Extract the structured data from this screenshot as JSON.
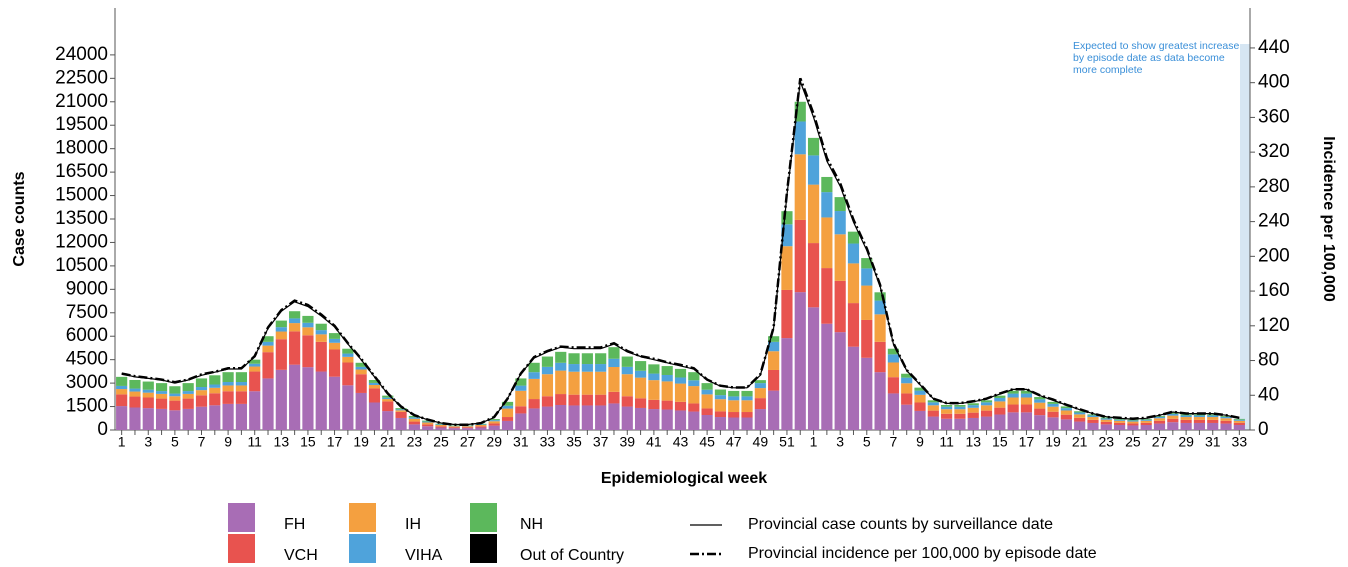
{
  "chart_data": {
    "type": "bar",
    "stacked": true,
    "x_label": "Epidemiological week",
    "y_label": "Case counts",
    "y2_label": "Incidence per 100,000",
    "annotation": "Expected to show greatest increase by episode date as data become more complete",
    "categories": [
      "1",
      null,
      "3",
      null,
      "5",
      null,
      "7",
      null,
      "9",
      null,
      "11",
      null,
      "13",
      null,
      "15",
      null,
      "17",
      null,
      "19",
      null,
      "21",
      null,
      "23",
      null,
      "25",
      null,
      "27",
      null,
      "29",
      null,
      "31",
      null,
      "33",
      null,
      "35",
      null,
      "37",
      null,
      "39",
      null,
      "41",
      null,
      "43",
      null,
      "45",
      null,
      "47",
      null,
      "49",
      null,
      "51",
      null,
      "1",
      null,
      "3",
      null,
      "5",
      null,
      "7",
      null,
      "9",
      null,
      "11",
      null,
      "13",
      null,
      "15",
      null,
      "17",
      null,
      "19",
      null,
      "21",
      null,
      "23",
      null,
      "25",
      null,
      "27",
      null,
      "29",
      null,
      "31",
      null,
      "33"
    ],
    "ylim": [
      0,
      27000
    ],
    "yticks": [
      0,
      1500,
      3000,
      4500,
      6000,
      7500,
      9000,
      10500,
      12000,
      13500,
      15000,
      16500,
      18000,
      19500,
      21000,
      22500,
      24000
    ],
    "y2lim": [
      0,
      486
    ],
    "y2ticks": [
      0,
      40,
      80,
      120,
      160,
      200,
      240,
      280,
      320,
      360,
      400,
      440
    ],
    "grid": false,
    "series": [
      {
        "name": "FH",
        "color": "#a86db5",
        "values": [
          1530,
          1440,
          1400,
          1350,
          1260,
          1350,
          1490,
          1580,
          1670,
          1670,
          2480,
          3300,
          3850,
          4180,
          4020,
          3740,
          3410,
          2860,
          2370,
          1760,
          1210,
          770,
          360,
          240,
          160,
          120,
          120,
          160,
          280,
          580,
          1060,
          1380,
          1500,
          1600,
          1570,
          1570,
          1570,
          1700,
          1500,
          1410,
          1340,
          1310,
          1250,
          1180,
          960,
          830,
          800,
          800,
          1340,
          2520,
          5880,
          8820,
          7850,
          6800,
          6260,
          5330,
          4620,
          3700,
          2340,
          1620,
          1220,
          860,
          720,
          720,
          770,
          860,
          990,
          1130,
          1130,
          950,
          810,
          680,
          540,
          450,
          360,
          320,
          290,
          320,
          410,
          500,
          450,
          450,
          450,
          410,
          320
        ]
      },
      {
        "name": "VCH",
        "color": "#e8534f",
        "values": [
          750,
          700,
          680,
          660,
          620,
          660,
          730,
          770,
          810,
          810,
          1260,
          1680,
          1960,
          2130,
          2040,
          1900,
          1740,
          1460,
          1200,
          900,
          620,
          390,
          180,
          120,
          80,
          60,
          60,
          80,
          140,
          250,
          460,
          600,
          660,
          700,
          690,
          690,
          690,
          740,
          660,
          620,
          590,
          570,
          550,
          520,
          420,
          360,
          350,
          350,
          700,
          1320,
          3080,
          4620,
          4110,
          3560,
          3280,
          2790,
          2420,
          1940,
          1040,
          720,
          540,
          380,
          320,
          320,
          340,
          380,
          440,
          500,
          500,
          420,
          360,
          300,
          240,
          200,
          160,
          140,
          130,
          140,
          180,
          220,
          200,
          200,
          200,
          180,
          140
        ]
      },
      {
        "name": "IH",
        "color": "#f4a040",
        "values": [
          340,
          320,
          310,
          300,
          280,
          300,
          330,
          350,
          370,
          370,
          320,
          420,
          490,
          530,
          510,
          480,
          430,
          360,
          300,
          220,
          150,
          100,
          180,
          120,
          80,
          60,
          60,
          80,
          140,
          540,
          990,
          1290,
          1410,
          1500,
          1470,
          1470,
          1470,
          1590,
          1410,
          1320,
          1260,
          1230,
          1170,
          1110,
          900,
          780,
          750,
          750,
          640,
          1200,
          2800,
          4200,
          3740,
          3240,
          2980,
          2540,
          2200,
          1760,
          940,
          650,
          490,
          340,
          290,
          290,
          310,
          340,
          400,
          450,
          450,
          380,
          320,
          270,
          220,
          180,
          140,
          130,
          120,
          130,
          160,
          200,
          180,
          180,
          180,
          160,
          130
        ]
      },
      {
        "name": "VIHA",
        "color": "#4fa3db",
        "values": [
          200,
          190,
          190,
          180,
          170,
          180,
          200,
          210,
          220,
          220,
          180,
          240,
          280,
          300,
          290,
          270,
          250,
          210,
          170,
          130,
          90,
          60,
          90,
          60,
          40,
          30,
          30,
          40,
          70,
          180,
          330,
          430,
          470,
          500,
          490,
          490,
          490,
          530,
          470,
          440,
          420,
          410,
          390,
          370,
          300,
          260,
          250,
          250,
          320,
          600,
          1400,
          2100,
          1870,
          1620,
          1490,
          1270,
          1100,
          880,
          520,
          360,
          270,
          190,
          160,
          160,
          170,
          190,
          220,
          250,
          250,
          210,
          180,
          150,
          120,
          100,
          80,
          70,
          70,
          70,
          90,
          110,
          100,
          100,
          100,
          90,
          70
        ]
      },
      {
        "name": "NH",
        "color": "#5cb85c",
        "values": [
          580,
          550,
          520,
          510,
          470,
          510,
          550,
          590,
          630,
          630,
          260,
          360,
          420,
          460,
          440,
          410,
          370,
          310,
          260,
          190,
          130,
          80,
          90,
          60,
          40,
          30,
          30,
          40,
          70,
          250,
          460,
          600,
          660,
          700,
          690,
          690,
          690,
          740,
          660,
          620,
          590,
          570,
          550,
          520,
          420,
          360,
          350,
          350,
          190,
          360,
          840,
          1260,
          1120,
          970,
          890,
          760,
          660,
          530,
          360,
          250,
          190,
          130,
          110,
          110,
          120,
          130,
          150,
          180,
          180,
          150,
          130,
          110,
          80,
          70,
          60,
          50,
          50,
          50,
          60,
          80,
          70,
          70,
          70,
          60,
          50
        ]
      },
      {
        "name": "Out of Country",
        "color": "#000000",
        "values": [
          0,
          0,
          0,
          0,
          0,
          0,
          0,
          0,
          0,
          0,
          0,
          0,
          0,
          0,
          0,
          0,
          0,
          0,
          0,
          0,
          0,
          0,
          0,
          0,
          0,
          0,
          0,
          0,
          0,
          0,
          0,
          0,
          0,
          0,
          0,
          0,
          0,
          0,
          0,
          0,
          0,
          0,
          0,
          0,
          0,
          0,
          0,
          0,
          0,
          0,
          0,
          0,
          0,
          0,
          0,
          0,
          0,
          0,
          0,
          0,
          0,
          0,
          0,
          0,
          0,
          0,
          0,
          0,
          0,
          0,
          0,
          0,
          0,
          0,
          0,
          0,
          0,
          0,
          0,
          0,
          0,
          0,
          0,
          0,
          0
        ]
      },
      {
        "name": "Provincial case counts by surveillance date",
        "type": "line",
        "color": "#000000",
        "dash": false,
        "values": [
          3600,
          3400,
          3300,
          3200,
          3000,
          3200,
          3500,
          3700,
          3900,
          3900,
          4700,
          6500,
          7600,
          8200,
          7900,
          7300,
          6600,
          5500,
          4500,
          3400,
          2300,
          1500,
          950,
          650,
          450,
          350,
          350,
          450,
          800,
          2000,
          3600,
          4600,
          5000,
          5300,
          5200,
          5200,
          5200,
          5500,
          5000,
          4700,
          4500,
          4300,
          4100,
          3900,
          3200,
          2800,
          2700,
          2700,
          3500,
          6500,
          15000,
          22300,
          20000,
          17200,
          15600,
          13300,
          11500,
          9200,
          5500,
          3800,
          2900,
          2000,
          1700,
          1700,
          1800,
          2000,
          2300,
          2600,
          2600,
          2200,
          1900,
          1600,
          1300,
          1050,
          850,
          750,
          700,
          750,
          950,
          1150,
          1050,
          1050,
          1050,
          950,
          750
        ]
      },
      {
        "name": "Provincial incidence per 100,000 by episode date",
        "type": "line",
        "axis": "y2",
        "color": "#000000",
        "dash": true,
        "values": [
          65,
          62,
          60,
          58,
          55,
          58,
          64,
          67,
          71,
          71,
          85,
          118,
          138,
          149,
          144,
          133,
          120,
          100,
          82,
          62,
          42,
          27,
          17,
          12,
          8,
          6,
          6,
          8,
          15,
          36,
          65,
          84,
          91,
          96,
          95,
          95,
          95,
          100,
          91,
          85,
          82,
          78,
          75,
          71,
          58,
          51,
          49,
          49,
          64,
          118,
          273,
          405,
          364,
          313,
          284,
          242,
          209,
          167,
          100,
          69,
          53,
          36,
          31,
          31,
          33,
          36,
          42,
          47,
          47,
          40,
          35,
          29,
          24,
          19,
          15,
          14,
          13,
          14,
          17,
          21,
          19,
          19,
          19,
          17,
          14
        ]
      }
    ]
  }
}
